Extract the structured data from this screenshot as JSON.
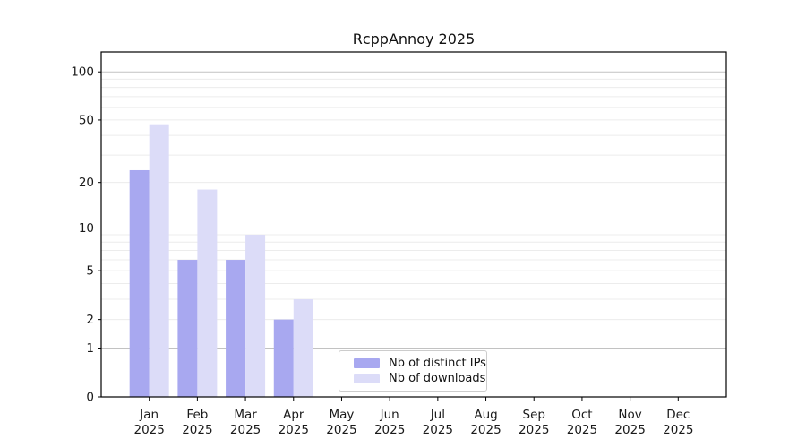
{
  "chart_data": {
    "type": "bar",
    "title": "RcppAnnoy 2025",
    "categories": [
      "Jan",
      "Feb",
      "Mar",
      "Apr",
      "May",
      "Jun",
      "Jul",
      "Aug",
      "Sep",
      "Oct",
      "Nov",
      "Dec"
    ],
    "year": "2025",
    "series": [
      {
        "name": "Nb of distinct IPs",
        "color": "#a8a8f0",
        "values": [
          24,
          6,
          6,
          2,
          0,
          0,
          0,
          0,
          0,
          0,
          0,
          0
        ]
      },
      {
        "name": "Nb of downloads",
        "color": "#dcdcf8",
        "values": [
          47,
          18,
          9,
          3,
          0,
          0,
          0,
          0,
          0,
          0,
          0,
          0
        ]
      }
    ],
    "yscale": "log1p",
    "yticks": [
      0,
      1,
      2,
      5,
      10,
      20,
      50,
      100
    ],
    "ylim": [
      0,
      133
    ],
    "grid": "both",
    "legend_position": "lower-center",
    "xlabel": "",
    "ylabel": ""
  },
  "colors": {
    "frame": "#000000",
    "major_grid": "#c2c2c2",
    "minor_grid": "#ececec",
    "tick_text": "#1a1a1a",
    "legend_border": "#cccccc",
    "background": "#ffffff"
  }
}
